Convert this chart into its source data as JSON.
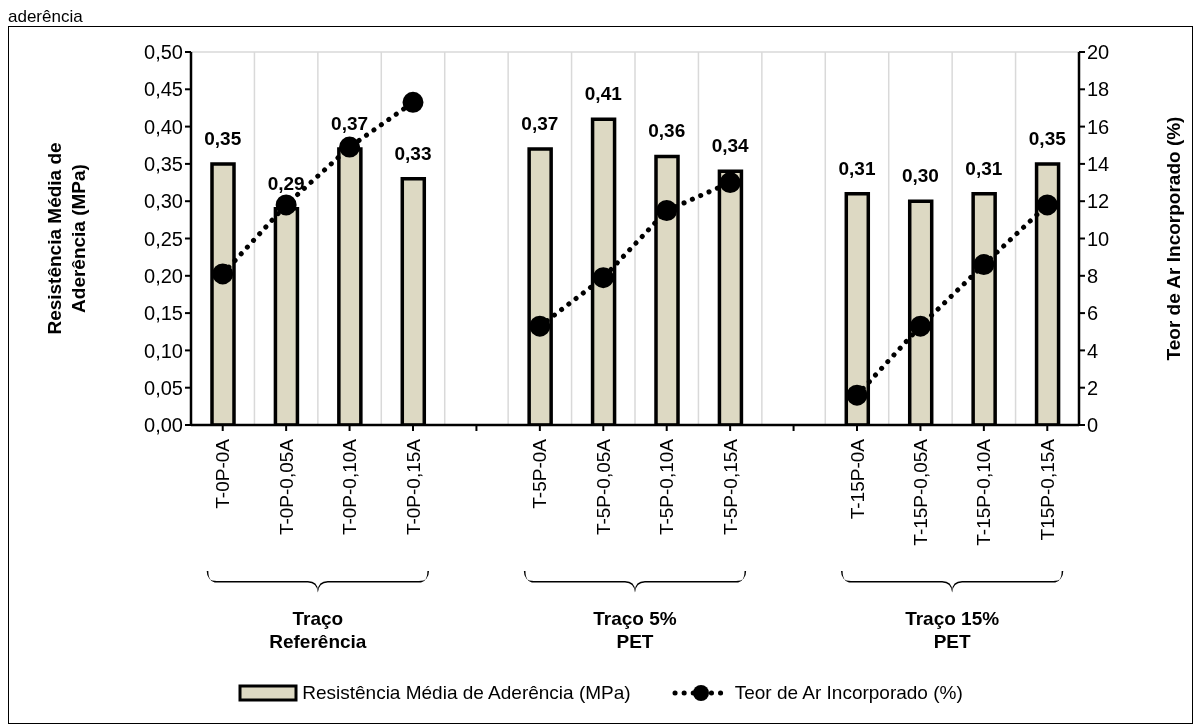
{
  "chart_data": {
    "type": "bar",
    "title": "aderência",
    "ylabel": "Resistência Média de Aderência (MPa)",
    "y2label": "Teor de Ar Incorporado (%)",
    "categories": [
      "T-0P-0A",
      "T-0P-0,05A",
      "T-0P-0,10A",
      "T-0P-0,15A",
      null,
      "T-5P-0A",
      "T-5P-0,05A",
      "T-5P-0,10A",
      "T-5P-0,15A",
      null,
      "T-15P-0A",
      "T-15P-0,05A",
      "T-15P-0,10A",
      "T15P-0,15A"
    ],
    "series": [
      {
        "name": "Resistência Média de Aderência (MPa)",
        "color": "#ddd9c3",
        "values": [
          0.35,
          0.29,
          0.37,
          0.33,
          null,
          0.37,
          0.41,
          0.36,
          0.34,
          null,
          0.31,
          0.3,
          0.31,
          0.35
        ],
        "value_labels": [
          "0,35",
          "0,29",
          "0,37",
          "0,33",
          null,
          "0,37",
          "0,41",
          "0,36",
          "0,34",
          null,
          "0,31",
          "0,30",
          "0,31",
          "0,35"
        ]
      },
      {
        "name": "Teor de Ar Incorporado (%)",
        "type": "line",
        "axis": "y2",
        "color": "#000000",
        "values": [
          8.1,
          11.8,
          14.9,
          17.3,
          null,
          5.3,
          7.9,
          11.5,
          13.0,
          null,
          1.6,
          5.3,
          8.6,
          11.8
        ]
      }
    ],
    "ylim": [
      0,
      0.5
    ],
    "yticks": [
      {
        "value": 0,
        "label": "0,00"
      },
      {
        "value": 0.05,
        "label": "0,05"
      },
      {
        "value": 0.1,
        "label": "0,10"
      },
      {
        "value": 0.15,
        "label": "0,15"
      },
      {
        "value": 0.2,
        "label": "0,20"
      },
      {
        "value": 0.25,
        "label": "0,25"
      },
      {
        "value": 0.3,
        "label": "0,30"
      },
      {
        "value": 0.35,
        "label": "0,35"
      },
      {
        "value": 0.4,
        "label": "0,40"
      },
      {
        "value": 0.45,
        "label": "0,45"
      },
      {
        "value": 0.5,
        "label": "0,50"
      }
    ],
    "y2lim": [
      0,
      20
    ],
    "y2ticks": [
      0,
      2,
      4,
      6,
      8,
      10,
      12,
      14,
      16,
      18,
      20
    ],
    "grid": true,
    "legend": "bottom",
    "marker": "circle",
    "line_style": "dotted",
    "annotations": [
      "Traço Referência",
      "Traço 5% PET",
      "Traço 15% PET"
    ]
  }
}
